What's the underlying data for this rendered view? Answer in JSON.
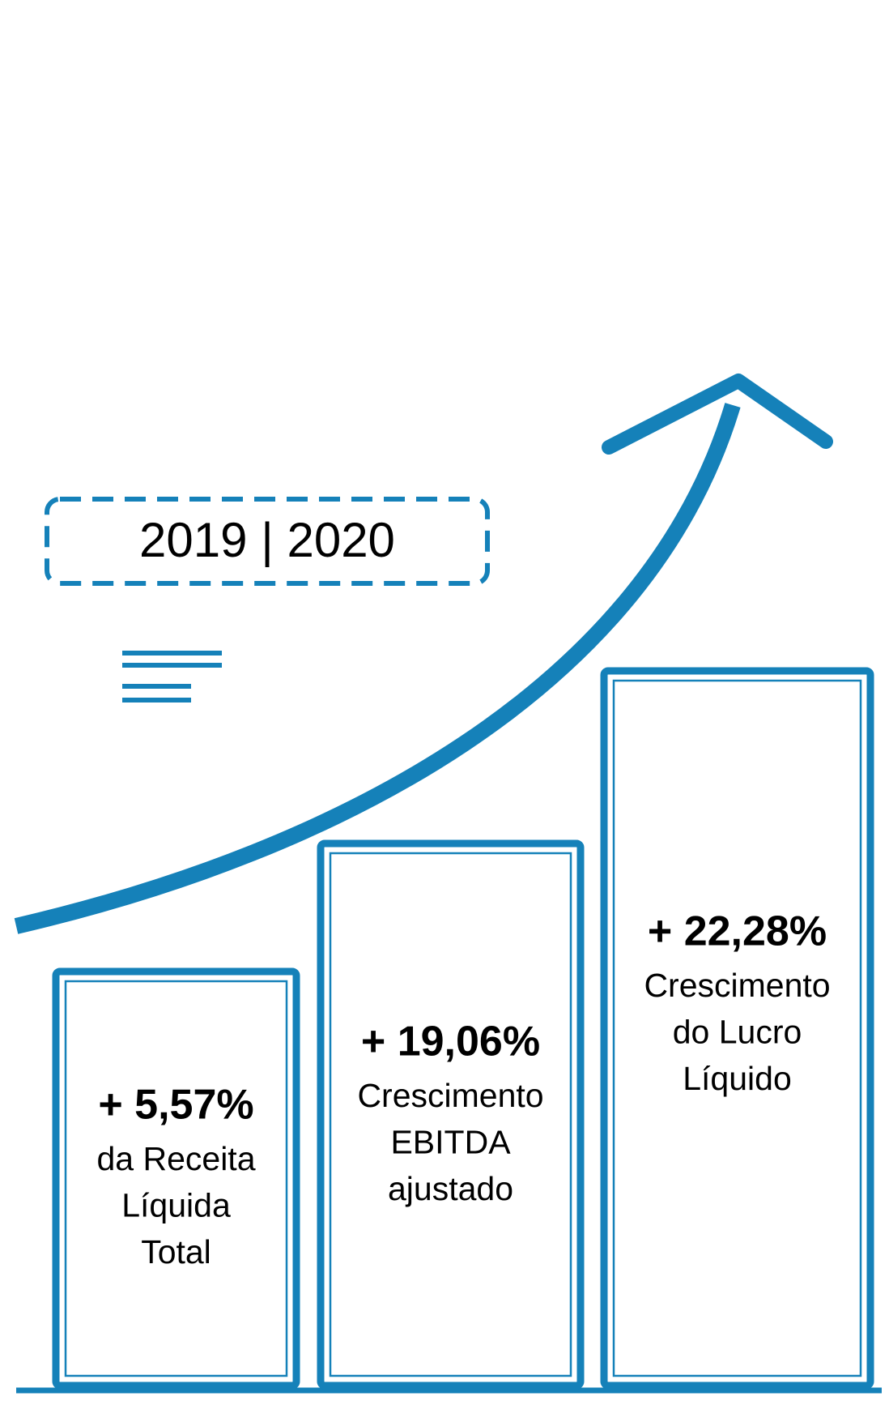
{
  "period": "2019 | 2020",
  "items": [
    {
      "value": "+ 5,57%",
      "lines": [
        "da Receita",
        "Líquida",
        "Total"
      ]
    },
    {
      "value": "+ 19,06%",
      "lines": [
        "Crescimento",
        "EBITDA",
        "ajustado"
      ]
    },
    {
      "value": "+ 22,28%",
      "lines": [
        "Crescimento",
        "do Lucro",
        "Líquido"
      ]
    }
  ]
}
